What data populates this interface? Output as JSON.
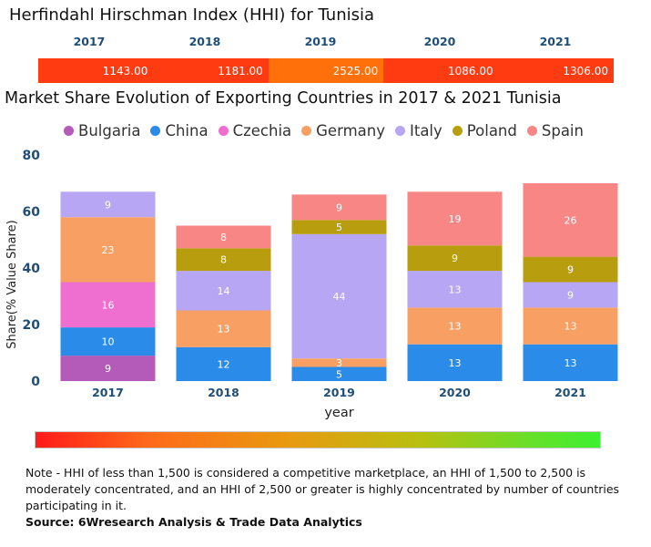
{
  "hhi": {
    "title": "Herfindahl Hirschman Index (HHI) for Tunisia",
    "years": [
      "2017",
      "2018",
      "2019",
      "2020",
      "2021"
    ],
    "values": [
      "1143.00",
      "1181.00",
      "2525.00",
      "1086.00",
      "1306.00"
    ],
    "colors": [
      "#ff3b12",
      "#ff3b12",
      "#ff6f0a",
      "#ff3b12",
      "#ff3b12"
    ]
  },
  "chart_data": {
    "type": "bar",
    "stacked": true,
    "title": "Market Share Evolution of Exporting Countries in 2017 & 2021 Tunisia",
    "xlabel": "year",
    "ylabel": "Share(% Value Share)",
    "ylim": [
      0,
      80
    ],
    "yticks": [
      0,
      20,
      40,
      60,
      80
    ],
    "categories": [
      "2017",
      "2018",
      "2019",
      "2020",
      "2021"
    ],
    "series": [
      {
        "name": "Bulgaria",
        "color": "#b45ab9",
        "values": [
          9,
          0,
          0,
          0,
          0
        ]
      },
      {
        "name": "China",
        "color": "#2a8ce8",
        "values": [
          10,
          12,
          5,
          13,
          13
        ]
      },
      {
        "name": "Czechia",
        "color": "#ee6fd0",
        "values": [
          16,
          0,
          0,
          0,
          0
        ]
      },
      {
        "name": "Germany",
        "color": "#f8a063",
        "values": [
          23,
          13,
          3,
          13,
          13
        ]
      },
      {
        "name": "Italy",
        "color": "#b6a6f3",
        "values": [
          9,
          14,
          44,
          13,
          9
        ]
      },
      {
        "name": "Poland",
        "color": "#b89e0e",
        "values": [
          0,
          8,
          5,
          9,
          9
        ]
      },
      {
        "name": "Spain",
        "color": "#f88684",
        "values": [
          0,
          8,
          9,
          19,
          26
        ]
      }
    ]
  },
  "legend_items": [
    "Bulgaria",
    "China",
    "Czechia",
    "Germany",
    "Italy",
    "Poland",
    "Spain"
  ],
  "note": "Note - HHI of less than 1,500 is considered a competitive marketplace, an HHI of 1,500 to 2,500 is moderately concentrated, and an HHI of 2,500 or greater is highly concentrated by number of countries participating in it.",
  "source": "Source: 6Wresearch Analysis & Trade Data Analytics"
}
